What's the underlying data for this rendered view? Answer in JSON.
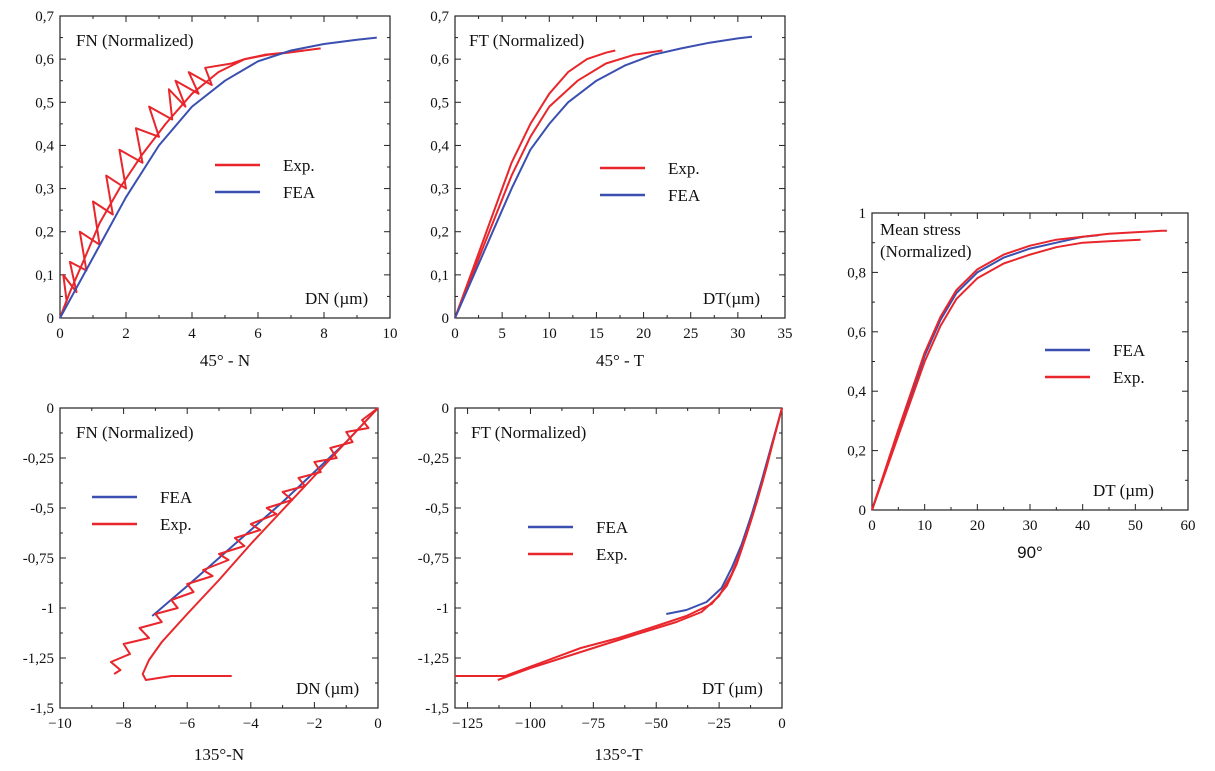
{
  "colors": {
    "exp": "#e8262b",
    "fea": "#3a4fb0",
    "axis": "#222222"
  },
  "chart_data": [
    {
      "id": "p45n",
      "type": "line",
      "title": "FN (Normalized)",
      "xlabel": "DN (µm)",
      "caption": "45° - N",
      "xlim": [
        0,
        10
      ],
      "ylim": [
        0,
        0.7
      ],
      "xticks": [
        0,
        2,
        4,
        6,
        8,
        10
      ],
      "yticks": [
        0,
        0.1,
        0.2,
        0.3,
        0.4,
        0.5,
        0.6,
        0.7
      ],
      "xtick_labels": [
        "0",
        "2",
        "4",
        "6",
        "8",
        "10"
      ],
      "ytick_labels": [
        "0",
        "0,1",
        "0,2",
        "0,3",
        "0,4",
        "0,5",
        "0,6",
        "0,7"
      ],
      "grid": false,
      "legend_position": "middle-right",
      "series": [
        {
          "name": "Exp.",
          "color": "exp",
          "in_legend": true,
          "x": [
            0,
            0.2,
            0.1,
            0.5,
            0.3,
            0.8,
            0.6,
            1.2,
            1.0,
            1.6,
            1.4,
            2.0,
            1.8,
            2.5,
            2.3,
            3.0,
            2.7,
            3.4,
            3.3,
            3.8,
            3.5,
            4.2,
            3.9,
            4.6,
            4.4,
            5.2,
            5.6,
            6.2,
            6.8,
            7.4,
            7.9
          ],
          "y": [
            0,
            0.04,
            0.1,
            0.06,
            0.13,
            0.11,
            0.2,
            0.17,
            0.27,
            0.24,
            0.33,
            0.3,
            0.39,
            0.36,
            0.44,
            0.42,
            0.49,
            0.46,
            0.53,
            0.49,
            0.55,
            0.52,
            0.57,
            0.54,
            0.58,
            0.59,
            0.6,
            0.61,
            0.615,
            0.62,
            0.625
          ]
        },
        {
          "name": "Exp.",
          "color": "exp",
          "in_legend": false,
          "x": [
            0,
            0.3,
            0.7,
            1.2,
            1.8,
            2.5,
            3.2,
            4.0,
            4.8,
            5.6,
            6.3,
            6.9,
            7.4
          ],
          "y": [
            0,
            0.06,
            0.13,
            0.22,
            0.3,
            0.38,
            0.45,
            0.52,
            0.57,
            0.6,
            0.61,
            0.615,
            0.62
          ]
        },
        {
          "name": "FEA",
          "color": "fea",
          "in_legend": true,
          "x": [
            0,
            0.5,
            1.0,
            1.5,
            2.0,
            3.0,
            4.0,
            5.0,
            6.0,
            7.0,
            8.0,
            9.0,
            9.6
          ],
          "y": [
            0,
            0.07,
            0.14,
            0.21,
            0.28,
            0.4,
            0.49,
            0.55,
            0.595,
            0.62,
            0.635,
            0.645,
            0.65
          ]
        }
      ]
    },
    {
      "id": "p45t",
      "type": "line",
      "title": "FT (Normalized)",
      "xlabel": "DT(µm)",
      "caption": "45° - T",
      "xlim": [
        0,
        35
      ],
      "ylim": [
        0,
        0.7
      ],
      "xticks": [
        0,
        5,
        10,
        15,
        20,
        25,
        30,
        35
      ],
      "yticks": [
        0,
        0.1,
        0.2,
        0.3,
        0.4,
        0.5,
        0.6,
        0.7
      ],
      "xtick_labels": [
        "0",
        "5",
        "10",
        "15",
        "20",
        "25",
        "30",
        "35"
      ],
      "ytick_labels": [
        "0",
        "0,1",
        "0,2",
        "0,3",
        "0,4",
        "0,5",
        "0,6",
        "0,7"
      ],
      "grid": false,
      "legend_position": "middle-right",
      "series": [
        {
          "name": "Exp.",
          "color": "exp",
          "in_legend": true,
          "x": [
            0,
            2,
            4,
            6,
            8,
            10,
            12,
            14,
            16,
            17
          ],
          "y": [
            0,
            0.12,
            0.24,
            0.36,
            0.45,
            0.52,
            0.57,
            0.6,
            0.615,
            0.62
          ]
        },
        {
          "name": "Exp.",
          "color": "exp",
          "in_legend": false,
          "x": [
            0,
            2,
            4,
            6,
            8,
            10,
            13,
            16,
            19,
            22
          ],
          "y": [
            0,
            0.11,
            0.22,
            0.33,
            0.42,
            0.49,
            0.55,
            0.59,
            0.61,
            0.62
          ]
        },
        {
          "name": "FEA",
          "color": "fea",
          "in_legend": true,
          "x": [
            0,
            2,
            4,
            6,
            8,
            10,
            12,
            15,
            18,
            21,
            24,
            27,
            30,
            31.5
          ],
          "y": [
            0,
            0.1,
            0.2,
            0.3,
            0.39,
            0.45,
            0.5,
            0.55,
            0.585,
            0.61,
            0.625,
            0.638,
            0.648,
            0.652
          ]
        }
      ]
    },
    {
      "id": "p90",
      "type": "line",
      "title": "Mean stress\n(Normalized)",
      "xlabel": "DT (µm)",
      "caption": "90°",
      "xlim": [
        0,
        60
      ],
      "ylim": [
        0,
        1
      ],
      "xticks": [
        0,
        10,
        20,
        30,
        40,
        50,
        60
      ],
      "yticks": [
        0,
        0.2,
        0.4,
        0.6,
        0.8,
        1
      ],
      "xtick_labels": [
        "0",
        "10",
        "20",
        "30",
        "40",
        "50",
        "60"
      ],
      "ytick_labels": [
        "0",
        "0,2",
        "0,4",
        "0,6",
        "0,8",
        "1"
      ],
      "grid": false,
      "legend_position": "middle-right",
      "series": [
        {
          "name": "FEA",
          "color": "fea",
          "in_legend": true,
          "x": [
            0,
            5,
            10,
            13,
            16,
            20,
            25,
            30,
            35,
            40,
            43
          ],
          "y": [
            0,
            0.26,
            0.52,
            0.64,
            0.73,
            0.8,
            0.85,
            0.88,
            0.9,
            0.92,
            0.925
          ]
        },
        {
          "name": "Exp.",
          "color": "exp",
          "in_legend": true,
          "x": [
            0,
            5,
            10,
            13,
            16,
            20,
            25,
            30,
            35,
            40,
            45,
            50,
            55,
            56
          ],
          "y": [
            0,
            0.27,
            0.53,
            0.65,
            0.74,
            0.81,
            0.86,
            0.89,
            0.91,
            0.92,
            0.93,
            0.935,
            0.94,
            0.94
          ]
        },
        {
          "name": "Exp.",
          "color": "exp",
          "in_legend": false,
          "x": [
            0,
            5,
            10,
            13,
            16,
            20,
            25,
            30,
            35,
            40,
            45,
            51
          ],
          "y": [
            0,
            0.25,
            0.5,
            0.62,
            0.71,
            0.78,
            0.83,
            0.86,
            0.885,
            0.9,
            0.905,
            0.91
          ]
        }
      ]
    },
    {
      "id": "p135n",
      "type": "line",
      "title": "FN (Normalized)",
      "xlabel": "DN (µm)",
      "caption": "135°-N",
      "xlim": [
        -10,
        0
      ],
      "ylim": [
        -1.5,
        0
      ],
      "xticks": [
        -10,
        -8,
        -6,
        -4,
        -2,
        0
      ],
      "yticks": [
        -1.5,
        -1.25,
        -1,
        -0.75,
        -0.5,
        -0.25,
        0
      ],
      "xtick_labels": [
        "−10",
        "−8",
        "−6",
        "−4",
        "−2",
        "0"
      ],
      "ytick_labels": [
        "-1,5",
        "-1,25",
        "-1",
        "-0,75",
        "-0,5",
        "-0,25",
        "0"
      ],
      "grid": false,
      "legend_position": "upper-left",
      "series": [
        {
          "name": "FEA",
          "color": "fea",
          "in_legend": true,
          "x": [
            -7.1,
            -6,
            -5,
            -4,
            -3,
            -2,
            -1,
            0
          ],
          "y": [
            -1.04,
            -0.89,
            -0.75,
            -0.61,
            -0.47,
            -0.32,
            -0.17,
            0
          ]
        },
        {
          "name": "Exp.",
          "color": "exp",
          "in_legend": true,
          "x": [
            0,
            -0.5,
            -0.3,
            -1.0,
            -0.8,
            -1.5,
            -1.3,
            -2.0,
            -1.8,
            -2.5,
            -2.3,
            -3.0,
            -2.7,
            -3.5,
            -3.2,
            -4.0,
            -3.7,
            -4.5,
            -4.2,
            -5.0,
            -4.7,
            -5.5,
            -5.2,
            -6.0,
            -5.8,
            -6.5,
            -6.3,
            -7.0,
            -6.8,
            -7.5,
            -7.2,
            -8.0,
            -7.8,
            -8.4,
            -8.1,
            -8.3
          ],
          "y": [
            0,
            -0.06,
            -0.1,
            -0.12,
            -0.17,
            -0.2,
            -0.25,
            -0.27,
            -0.32,
            -0.35,
            -0.39,
            -0.42,
            -0.46,
            -0.5,
            -0.53,
            -0.58,
            -0.61,
            -0.65,
            -0.69,
            -0.73,
            -0.76,
            -0.81,
            -0.84,
            -0.88,
            -0.92,
            -0.96,
            -1.0,
            -1.03,
            -1.07,
            -1.1,
            -1.15,
            -1.18,
            -1.23,
            -1.27,
            -1.31,
            -1.33
          ]
        },
        {
          "name": "Exp.",
          "color": "exp",
          "in_legend": false,
          "x": [
            0,
            -1,
            -2,
            -3,
            -4,
            -5,
            -6,
            -6.8,
            -7.2,
            -7.4,
            -7.3,
            -6.5,
            -5.5,
            -4.6
          ],
          "y": [
            0,
            -0.17,
            -0.34,
            -0.51,
            -0.68,
            -0.86,
            -1.03,
            -1.17,
            -1.26,
            -1.33,
            -1.36,
            -1.34,
            -1.34,
            -1.34
          ]
        }
      ]
    },
    {
      "id": "p135t",
      "type": "line",
      "title": "FT (Normalized)",
      "xlabel": "DT (µm)",
      "caption": "135°-T",
      "xlim": [
        -130,
        0
      ],
      "ylim": [
        -1.5,
        0
      ],
      "xticks": [
        -125,
        -100,
        -75,
        -50,
        -25,
        0
      ],
      "yticks": [
        -1.5,
        -1.25,
        -1,
        -0.75,
        -0.5,
        -0.25,
        0
      ],
      "xtick_labels": [
        "−125",
        "−100",
        "−75",
        "−50",
        "−25",
        "0"
      ],
      "ytick_labels": [
        "-1,5",
        "-1,25",
        "-1",
        "-0,75",
        "-0,5",
        "-0,25",
        "0"
      ],
      "grid": false,
      "legend_position": "middle-center",
      "series": [
        {
          "name": "FEA",
          "color": "fea",
          "in_legend": true,
          "x": [
            -46,
            -38,
            -30,
            -24,
            -20,
            -16,
            -12,
            -8,
            -4,
            0
          ],
          "y": [
            -1.03,
            -1.01,
            -0.97,
            -0.9,
            -0.8,
            -0.68,
            -0.53,
            -0.36,
            -0.18,
            0
          ]
        },
        {
          "name": "Exp.",
          "color": "exp",
          "in_legend": true,
          "x": [
            -130,
            -110,
            -95,
            -80,
            -65,
            -50,
            -38,
            -28,
            -22,
            -18,
            -14,
            -10,
            -6,
            -3,
            0
          ],
          "y": [
            -1.34,
            -1.34,
            -1.27,
            -1.2,
            -1.15,
            -1.09,
            -1.04,
            -0.98,
            -0.89,
            -0.78,
            -0.63,
            -0.47,
            -0.29,
            -0.14,
            0
          ]
        },
        {
          "name": "Exp.",
          "color": "exp",
          "in_legend": false,
          "x": [
            -113,
            -100,
            -85,
            -70,
            -55,
            -42,
            -32,
            -25,
            -20,
            -16,
            -12,
            -8,
            -4,
            0
          ],
          "y": [
            -1.36,
            -1.3,
            -1.24,
            -1.18,
            -1.12,
            -1.07,
            -1.02,
            -0.94,
            -0.83,
            -0.7,
            -0.55,
            -0.38,
            -0.19,
            0
          ]
        }
      ]
    }
  ]
}
